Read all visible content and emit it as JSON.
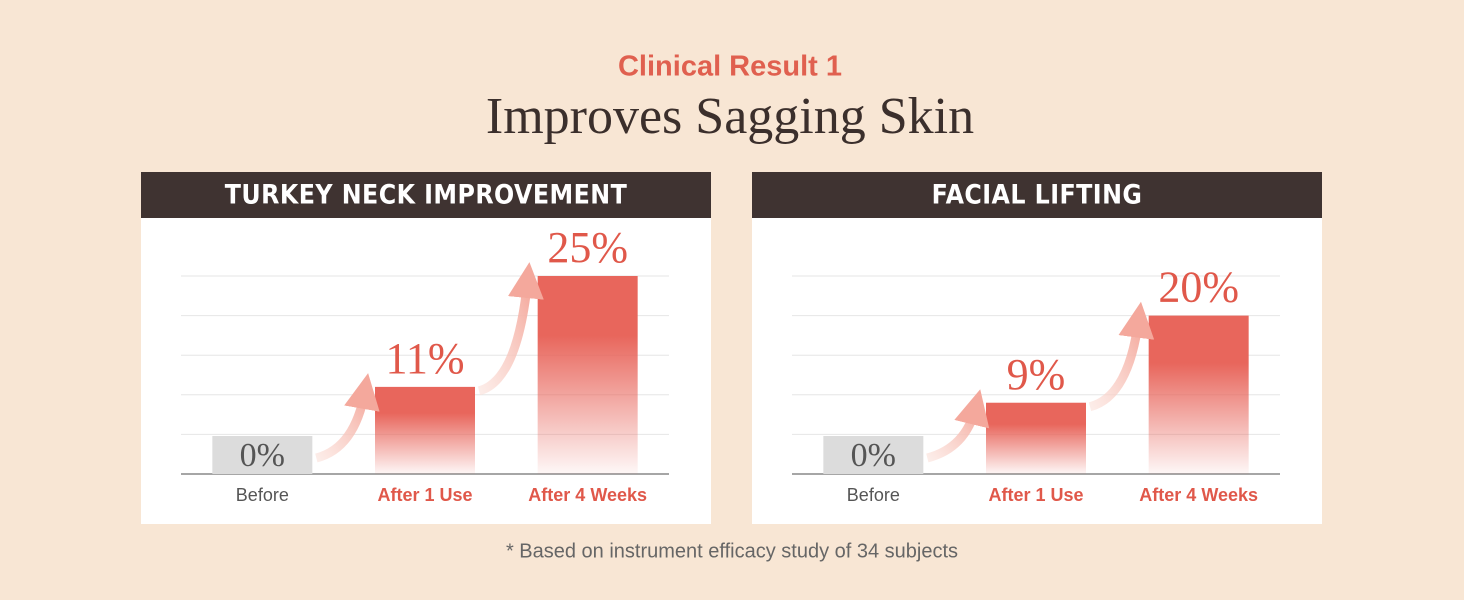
{
  "header": {
    "kicker": "Clinical Result 1",
    "title": "Improves Sagging Skin"
  },
  "chart_data": [
    {
      "type": "bar",
      "title": "TURKEY NECK IMPROVEMENT",
      "categories": [
        "Before",
        "After 1 Use",
        "After 4 Weeks"
      ],
      "values": [
        0,
        11,
        25
      ],
      "value_labels": [
        "0%",
        "11%",
        "25%"
      ],
      "colors": [
        "#dcdcdc",
        "#e8665c",
        "#e8665c"
      ],
      "label_colors": [
        "#555555",
        "#e0584a",
        "#e0584a"
      ],
      "ylim": [
        0,
        25
      ],
      "yticks": [
        0,
        5,
        10,
        15,
        20,
        25
      ],
      "grid": true
    },
    {
      "type": "bar",
      "title": "FACIAL LIFTING",
      "categories": [
        "Before",
        "After 1 Use",
        "After 4 Weeks"
      ],
      "values": [
        0,
        9,
        20
      ],
      "value_labels": [
        "0%",
        "9%",
        "20%"
      ],
      "colors": [
        "#dcdcdc",
        "#e8665c",
        "#e8665c"
      ],
      "label_colors": [
        "#555555",
        "#e0584a",
        "#e0584a"
      ],
      "ylim": [
        0,
        25
      ],
      "yticks": [
        0,
        5,
        10,
        15,
        20,
        25
      ],
      "grid": true
    }
  ],
  "footnote": "* Based on instrument efficacy study of 34 subjects"
}
